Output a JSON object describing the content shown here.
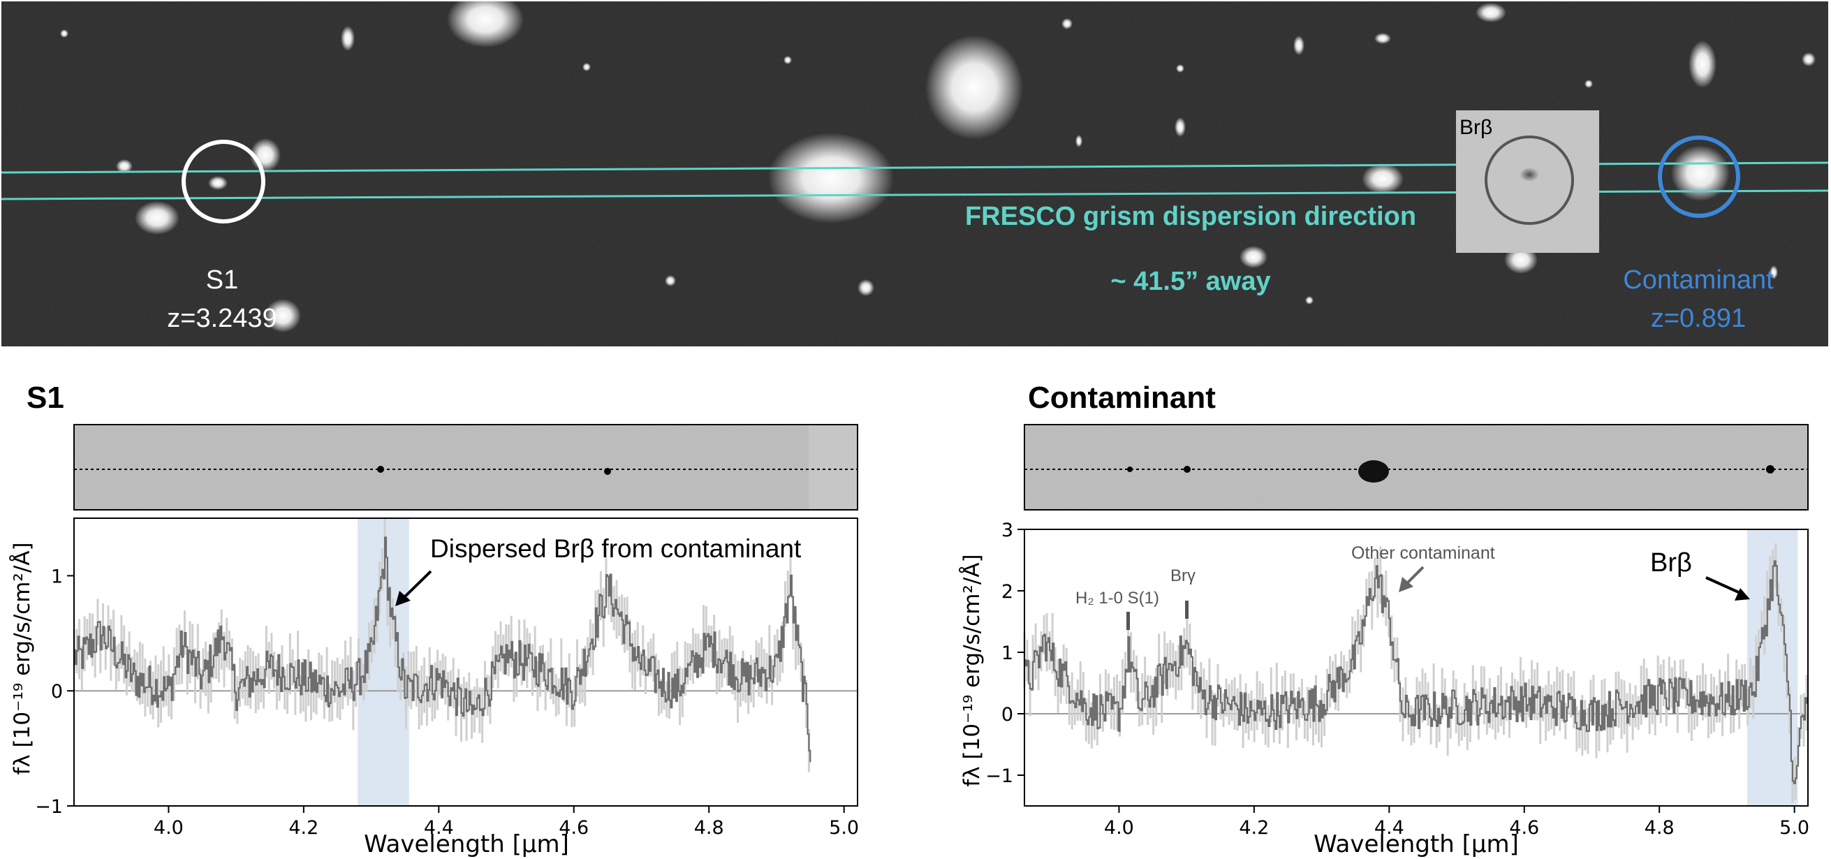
{
  "image": {
    "source_label": "S1",
    "source_redshift": "z=3.2439",
    "contaminant_label": "Contaminant",
    "contaminant_redshift": "z=0.891",
    "dispersion_label": "FRESCO grism dispersion direction",
    "separation_label": "~ 41.5” away",
    "inset_label": "Brβ",
    "colors": {
      "cyan": "#5fd3c8",
      "blue": "#3d87d9",
      "white": "#ffffff"
    }
  },
  "chart_data": [
    {
      "type": "line",
      "title": "S1",
      "xlabel": "Wavelength [μm]",
      "ylabel": "fλ [10⁻¹⁹ erg/s/cm²/Å]",
      "xlim": [
        3.86,
        5.02
      ],
      "ylim": [
        -1.0,
        1.5
      ],
      "xticks": [
        4.0,
        4.2,
        4.4,
        4.6,
        4.8,
        5.0
      ],
      "xtick_labels": [
        "4.0",
        "4.2",
        "4.4",
        "4.6",
        "4.8",
        "5.0"
      ],
      "yticks": [
        -1,
        0,
        1
      ],
      "ytick_labels": [
        "−1",
        "0",
        "1"
      ],
      "data_end": 4.95,
      "highlight_band": [
        4.28,
        4.356
      ],
      "annotations": [
        {
          "text": "Dispersed Brβ from contaminant",
          "x": 4.32,
          "y": 1.22
        }
      ],
      "series": [
        {
          "name": "flux",
          "x": [
            3.87,
            3.9,
            3.95,
            4.0,
            4.02,
            4.05,
            4.08,
            4.1,
            4.15,
            4.2,
            4.25,
            4.28,
            4.3,
            4.32,
            4.33,
            4.35,
            4.4,
            4.45,
            4.5,
            4.55,
            4.6,
            4.65,
            4.7,
            4.75,
            4.8,
            4.85,
            4.9,
            4.92,
            4.94,
            4.95
          ],
          "y": [
            0.3,
            0.5,
            0.1,
            0.0,
            0.4,
            0.1,
            0.5,
            0.0,
            0.2,
            0.1,
            0.0,
            0.1,
            0.3,
            1.2,
            0.6,
            0.0,
            0.1,
            -0.2,
            0.3,
            0.2,
            0.0,
            0.9,
            0.2,
            0.0,
            0.4,
            0.1,
            0.2,
            0.9,
            0.0,
            -0.5
          ]
        }
      ]
    },
    {
      "type": "line",
      "title": "Contaminant",
      "xlabel": "Wavelength [μm]",
      "ylabel": "fλ [10⁻¹⁹ erg/s/cm²/Å]",
      "xlim": [
        3.86,
        5.02
      ],
      "ylim": [
        -1.5,
        3.0
      ],
      "xticks": [
        4.0,
        4.2,
        4.4,
        4.6,
        4.8,
        5.0
      ],
      "xtick_labels": [
        "4.0",
        "4.2",
        "4.4",
        "4.6",
        "4.8",
        "5.0"
      ],
      "yticks": [
        -1,
        0,
        1,
        2,
        3
      ],
      "ytick_labels": [
        "−1",
        "0",
        "1",
        "2",
        "3"
      ],
      "data_end": 5.02,
      "highlight_band": [
        4.93,
        5.005
      ],
      "annotations": [
        {
          "text": "H₂ 1-0 S(1)",
          "x": 4.014,
          "y": 1.75
        },
        {
          "text": "Brγ",
          "x": 4.1,
          "y": 2.05
        },
        {
          "text": "Other contaminant",
          "x": 4.45,
          "y": 2.45
        },
        {
          "text": "Brβ",
          "x": 4.9,
          "y": 2.35
        }
      ],
      "series": [
        {
          "name": "flux",
          "x": [
            3.87,
            3.89,
            3.9,
            3.95,
            4.0,
            4.014,
            4.03,
            4.1,
            4.12,
            4.2,
            4.3,
            4.35,
            4.38,
            4.4,
            4.42,
            4.5,
            4.6,
            4.7,
            4.8,
            4.9,
            4.94,
            4.97,
            4.99,
            5.0,
            5.01
          ],
          "y": [
            0.6,
            1.2,
            0.9,
            0.1,
            0.0,
            1.0,
            0.1,
            1.1,
            0.3,
            0.0,
            0.2,
            0.9,
            2.3,
            1.5,
            0.0,
            0.1,
            0.2,
            0.0,
            0.3,
            0.2,
            0.4,
            2.4,
            0.5,
            -1.4,
            0.0
          ]
        }
      ]
    }
  ]
}
